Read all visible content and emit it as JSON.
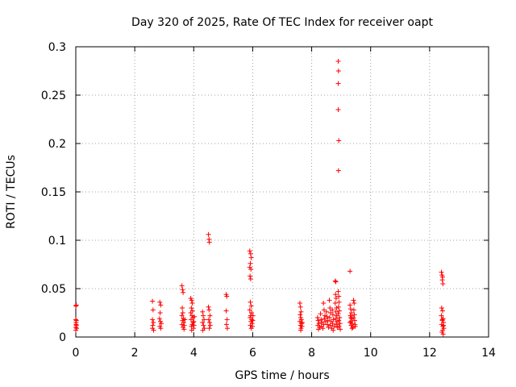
{
  "chart_data": {
    "type": "scatter",
    "title": "Day 320 of 2025, Rate Of TEC Index for receiver oapt",
    "xlabel": "GPS time / hours",
    "ylabel": "ROTI / TECUs",
    "xlim": [
      0,
      14
    ],
    "ylim": [
      0,
      0.3
    ],
    "x_ticks": [
      0,
      2,
      4,
      6,
      8,
      10,
      12,
      14
    ],
    "x_tick_labels": [
      "0",
      "2",
      "4",
      "6",
      "8",
      "10",
      "12",
      "14"
    ],
    "y_ticks": [
      0,
      0.05,
      0.1,
      0.15,
      0.2,
      0.25,
      0.3
    ],
    "y_tick_labels": [
      "0",
      "0.05",
      "0.1",
      "0.15",
      "0.2",
      "0.25",
      "0.3"
    ],
    "grid": true,
    "marker": "+",
    "color": "#ff0000",
    "series": [
      {
        "name": "ROTI",
        "points": [
          [
            0.0,
            0.032
          ],
          [
            0.02,
            0.033
          ],
          [
            0.0,
            0.018
          ],
          [
            0.01,
            0.015
          ],
          [
            0.02,
            0.012
          ],
          [
            0.0,
            0.01
          ],
          [
            0.03,
            0.009
          ],
          [
            0.01,
            0.013
          ],
          [
            0.02,
            0.017
          ],
          [
            0.0,
            0.007
          ],
          [
            2.6,
            0.037
          ],
          [
            2.62,
            0.028
          ],
          [
            2.6,
            0.018
          ],
          [
            2.63,
            0.015
          ],
          [
            2.61,
            0.012
          ],
          [
            2.6,
            0.009
          ],
          [
            2.64,
            0.007
          ],
          [
            2.85,
            0.036
          ],
          [
            2.88,
            0.033
          ],
          [
            2.86,
            0.025
          ],
          [
            2.84,
            0.019
          ],
          [
            2.87,
            0.016
          ],
          [
            2.9,
            0.014
          ],
          [
            2.85,
            0.011
          ],
          [
            2.88,
            0.009
          ],
          [
            3.6,
            0.053
          ],
          [
            3.62,
            0.049
          ],
          [
            3.64,
            0.046
          ],
          [
            3.61,
            0.03
          ],
          [
            3.63,
            0.025
          ],
          [
            3.6,
            0.022
          ],
          [
            3.65,
            0.019
          ],
          [
            3.62,
            0.017
          ],
          [
            3.66,
            0.015
          ],
          [
            3.6,
            0.013
          ],
          [
            3.64,
            0.01
          ],
          [
            3.68,
            0.012
          ],
          [
            3.7,
            0.018
          ],
          [
            3.67,
            0.008
          ],
          [
            3.9,
            0.04
          ],
          [
            3.93,
            0.038
          ],
          [
            3.95,
            0.035
          ],
          [
            3.92,
            0.03
          ],
          [
            3.96,
            0.027
          ],
          [
            3.9,
            0.025
          ],
          [
            3.94,
            0.022
          ],
          [
            3.97,
            0.02
          ],
          [
            3.91,
            0.018
          ],
          [
            3.98,
            0.015
          ],
          [
            3.95,
            0.013
          ],
          [
            3.92,
            0.011
          ],
          [
            3.99,
            0.009
          ],
          [
            4.0,
            0.016
          ],
          [
            4.02,
            0.021
          ],
          [
            4.01,
            0.012
          ],
          [
            3.93,
            0.007
          ],
          [
            4.3,
            0.026
          ],
          [
            4.32,
            0.022
          ],
          [
            4.35,
            0.018
          ],
          [
            4.3,
            0.015
          ],
          [
            4.33,
            0.012
          ],
          [
            4.36,
            0.009
          ],
          [
            4.31,
            0.007
          ],
          [
            4.5,
            0.106
          ],
          [
            4.52,
            0.101
          ],
          [
            4.53,
            0.098
          ],
          [
            4.5,
            0.031
          ],
          [
            4.52,
            0.028
          ],
          [
            4.55,
            0.022
          ],
          [
            4.51,
            0.018
          ],
          [
            4.54,
            0.015
          ],
          [
            4.56,
            0.012
          ],
          [
            4.53,
            0.009
          ],
          [
            5.1,
            0.044
          ],
          [
            5.12,
            0.042
          ],
          [
            5.1,
            0.027
          ],
          [
            5.13,
            0.018
          ],
          [
            5.11,
            0.013
          ],
          [
            5.14,
            0.009
          ],
          [
            5.9,
            0.089
          ],
          [
            5.93,
            0.086
          ],
          [
            5.95,
            0.082
          ],
          [
            5.92,
            0.076
          ],
          [
            5.9,
            0.072
          ],
          [
            5.94,
            0.07
          ],
          [
            5.91,
            0.063
          ],
          [
            5.93,
            0.06
          ],
          [
            5.92,
            0.036
          ],
          [
            5.95,
            0.032
          ],
          [
            5.9,
            0.028
          ],
          [
            5.96,
            0.025
          ],
          [
            5.93,
            0.022
          ],
          [
            5.91,
            0.02
          ],
          [
            5.97,
            0.018
          ],
          [
            5.94,
            0.016
          ],
          [
            5.98,
            0.014
          ],
          [
            5.92,
            0.012
          ],
          [
            5.99,
            0.011
          ],
          [
            6.0,
            0.017
          ],
          [
            6.01,
            0.022
          ],
          [
            5.95,
            0.009
          ],
          [
            7.6,
            0.035
          ],
          [
            7.62,
            0.031
          ],
          [
            7.64,
            0.026
          ],
          [
            7.61,
            0.023
          ],
          [
            7.63,
            0.02
          ],
          [
            7.65,
            0.018
          ],
          [
            7.6,
            0.016
          ],
          [
            7.66,
            0.014
          ],
          [
            7.62,
            0.012
          ],
          [
            7.67,
            0.011
          ],
          [
            7.64,
            0.009
          ],
          [
            7.68,
            0.015
          ],
          [
            7.63,
            0.007
          ],
          [
            8.2,
            0.02
          ],
          [
            8.22,
            0.017
          ],
          [
            8.25,
            0.014
          ],
          [
            8.21,
            0.012
          ],
          [
            8.27,
            0.01
          ],
          [
            8.23,
            0.008
          ],
          [
            8.3,
            0.024
          ],
          [
            8.32,
            0.018
          ],
          [
            8.35,
            0.015
          ],
          [
            8.33,
            0.011
          ],
          [
            8.38,
            0.009
          ],
          [
            8.4,
            0.035
          ],
          [
            8.42,
            0.028
          ],
          [
            8.45,
            0.022
          ],
          [
            8.43,
            0.019
          ],
          [
            8.47,
            0.016
          ],
          [
            8.41,
            0.013
          ],
          [
            8.5,
            0.026
          ],
          [
            8.52,
            0.021
          ],
          [
            8.55,
            0.017
          ],
          [
            8.53,
            0.013
          ],
          [
            8.57,
            0.01
          ],
          [
            8.6,
            0.038
          ],
          [
            8.62,
            0.03
          ],
          [
            8.64,
            0.025
          ],
          [
            8.61,
            0.02
          ],
          [
            8.66,
            0.016
          ],
          [
            8.63,
            0.012
          ],
          [
            8.68,
            0.009
          ],
          [
            8.7,
            0.028
          ],
          [
            8.72,
            0.023
          ],
          [
            8.74,
            0.018
          ],
          [
            8.71,
            0.014
          ],
          [
            8.76,
            0.011
          ],
          [
            8.73,
            0.007
          ],
          [
            8.8,
            0.058
          ],
          [
            8.82,
            0.057
          ],
          [
            8.81,
            0.044
          ],
          [
            8.83,
            0.04
          ],
          [
            8.8,
            0.035
          ],
          [
            8.84,
            0.03
          ],
          [
            8.82,
            0.026
          ],
          [
            8.85,
            0.022
          ],
          [
            8.81,
            0.019
          ],
          [
            8.86,
            0.016
          ],
          [
            8.83,
            0.013
          ],
          [
            8.87,
            0.01
          ],
          [
            8.9,
            0.285
          ],
          [
            8.91,
            0.275
          ],
          [
            8.9,
            0.262
          ],
          [
            8.9,
            0.235
          ],
          [
            8.92,
            0.203
          ],
          [
            8.91,
            0.172
          ],
          [
            8.9,
            0.047
          ],
          [
            8.92,
            0.042
          ],
          [
            8.93,
            0.036
          ],
          [
            8.91,
            0.031
          ],
          [
            8.94,
            0.027
          ],
          [
            8.9,
            0.024
          ],
          [
            8.95,
            0.02
          ],
          [
            8.92,
            0.017
          ],
          [
            8.96,
            0.014
          ],
          [
            8.93,
            0.011
          ],
          [
            8.97,
            0.008
          ],
          [
            9.3,
            0.068
          ],
          [
            9.3,
            0.033
          ],
          [
            9.32,
            0.029
          ],
          [
            9.35,
            0.025
          ],
          [
            9.31,
            0.022
          ],
          [
            9.36,
            0.019
          ],
          [
            9.33,
            0.016
          ],
          [
            9.38,
            0.014
          ],
          [
            9.34,
            0.012
          ],
          [
            9.4,
            0.01
          ],
          [
            9.42,
            0.038
          ],
          [
            9.44,
            0.035
          ],
          [
            9.43,
            0.028
          ],
          [
            9.45,
            0.023
          ],
          [
            9.41,
            0.02
          ],
          [
            9.46,
            0.017
          ],
          [
            9.47,
            0.013
          ],
          [
            9.48,
            0.011
          ],
          [
            9.37,
            0.009
          ],
          [
            9.3,
            0.015
          ],
          [
            9.33,
            0.02
          ],
          [
            12.4,
            0.067
          ],
          [
            12.42,
            0.064
          ],
          [
            12.44,
            0.062
          ],
          [
            12.43,
            0.059
          ],
          [
            12.45,
            0.055
          ],
          [
            12.41,
            0.03
          ],
          [
            12.44,
            0.027
          ],
          [
            12.4,
            0.022
          ],
          [
            12.46,
            0.019
          ],
          [
            12.43,
            0.017
          ],
          [
            12.47,
            0.015
          ],
          [
            12.41,
            0.013
          ],
          [
            12.45,
            0.011
          ],
          [
            12.48,
            0.009
          ],
          [
            12.44,
            0.007
          ],
          [
            12.42,
            0.005
          ],
          [
            12.46,
            0.003
          ],
          [
            12.43,
            0.018
          ],
          [
            12.47,
            0.012
          ]
        ]
      }
    ]
  }
}
